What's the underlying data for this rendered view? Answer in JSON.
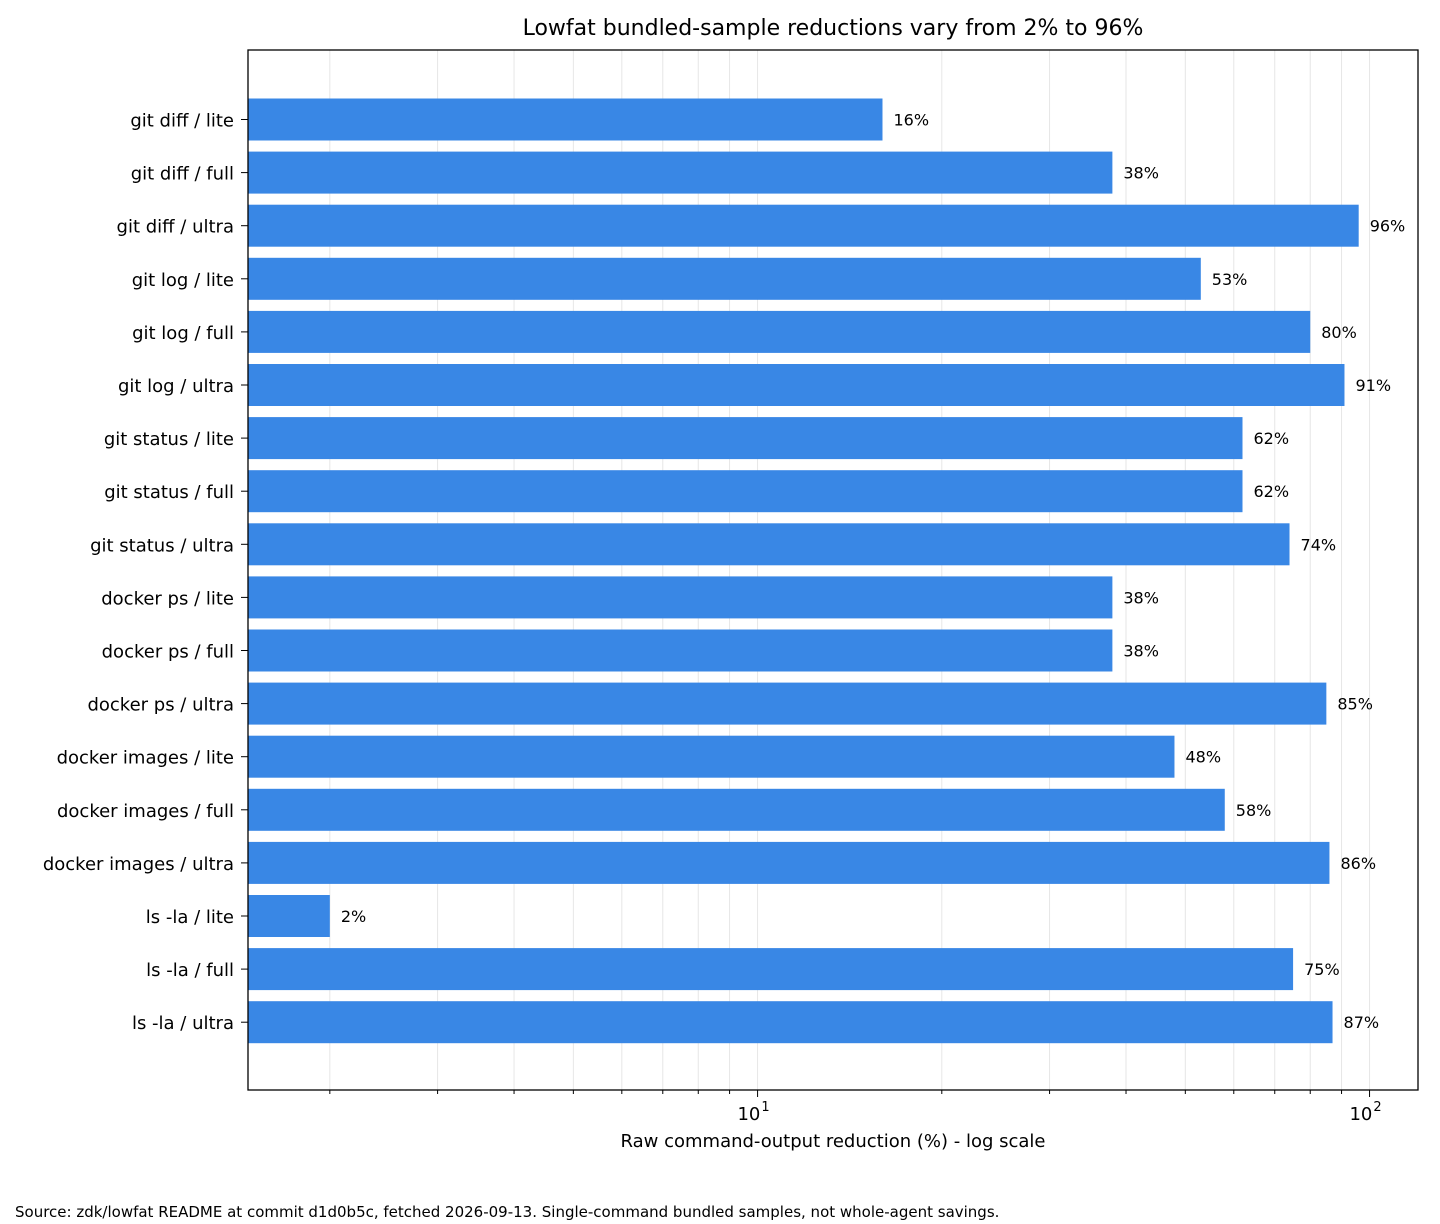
{
  "chart_data": {
    "type": "bar",
    "orientation": "horizontal",
    "title": "Lowfat bundled-sample reductions vary from 2% to 96%",
    "xlabel": "Raw command-output reduction (%) - log scale",
    "ylabel": "",
    "xscale": "log",
    "xlim": [
      1.47,
      120
    ],
    "grid": "vertical",
    "bar_color": "#3987e5",
    "categories": [
      "git diff / lite",
      "git diff / full",
      "git diff / ultra",
      "git log / lite",
      "git log / full",
      "git log / ultra",
      "git status / lite",
      "git status / full",
      "git status / ultra",
      "docker ps / lite",
      "docker ps / full",
      "docker ps / ultra",
      "docker images / lite",
      "docker images / full",
      "docker images / ultra",
      "ls -la / lite",
      "ls -la / full",
      "ls -la / ultra"
    ],
    "values": [
      16,
      38,
      96,
      53,
      80,
      91,
      62,
      62,
      74,
      38,
      38,
      85,
      48,
      58,
      86,
      2,
      75,
      87
    ],
    "value_labels": [
      "16%",
      "38%",
      "96%",
      "53%",
      "80%",
      "91%",
      "62%",
      "62%",
      "74%",
      "38%",
      "38%",
      "85%",
      "48%",
      "58%",
      "86%",
      "2%",
      "75%",
      "87%"
    ],
    "xticks": [
      {
        "value": 10,
        "base": "10",
        "exp": "1"
      },
      {
        "value": 100,
        "base": "10",
        "exp": "2"
      }
    ]
  },
  "footnote": "Source: zdk/lowfat README at commit d1d0b5c, fetched 2026-09-13. Single-command bundled samples, not whole-agent savings."
}
